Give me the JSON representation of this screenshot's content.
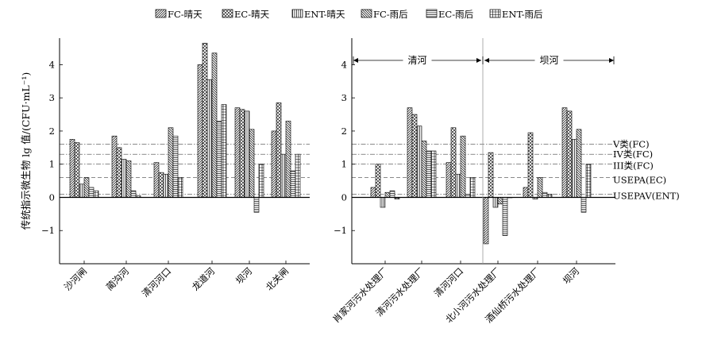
{
  "chart_data": {
    "type": "bar",
    "ylabel": "传统指示微生物 lg 值/(CFU·mL⁻¹)",
    "ylim": [
      -2,
      4.8
    ],
    "yticks": [
      -1,
      0,
      1,
      2,
      3,
      4
    ],
    "legend": {
      "placement": "top",
      "entries": [
        {
          "name": "FC-晴天",
          "pattern": "diag-right"
        },
        {
          "name": "EC-晴天",
          "pattern": "cross"
        },
        {
          "name": "ENT-晴天",
          "pattern": "vertical"
        },
        {
          "name": "FC-雨后",
          "pattern": "diag-left"
        },
        {
          "name": "EC-雨后",
          "pattern": "horizontal"
        },
        {
          "name": "ENT-雨后",
          "pattern": "grid"
        }
      ]
    },
    "thresholds": [
      {
        "label": "V类(FC)",
        "value": 1.6,
        "style": "dashdot"
      },
      {
        "label": "IV类(FC)",
        "value": 1.3,
        "style": "dashdot"
      },
      {
        "label": "III类(FC)",
        "value": 1.0,
        "style": "dashdot"
      },
      {
        "label": "USEPA(EC)",
        "value": 0.6,
        "style": "dash"
      },
      {
        "label": "USEPAV(ENT)",
        "value": 0.1,
        "style": "dashdot"
      }
    ],
    "panels": [
      {
        "categories": [
          "沙河闸",
          "蔺沟河",
          "清河河口",
          "龙道河",
          "坝河",
          "北关闸"
        ],
        "series": [
          {
            "name": "FC-晴天",
            "values": [
              1.75,
              1.85,
              1.05,
              4.0,
              2.7,
              2.0
            ]
          },
          {
            "name": "EC-晴天",
            "values": [
              1.65,
              1.5,
              0.75,
              4.65,
              2.65,
              2.85
            ]
          },
          {
            "name": "ENT-晴天",
            "values": [
              0.4,
              1.15,
              0.7,
              3.55,
              2.6,
              1.3
            ]
          },
          {
            "name": "FC-雨后",
            "values": [
              0.6,
              1.1,
              2.1,
              4.35,
              2.05,
              2.3
            ]
          },
          {
            "name": "EC-雨后",
            "values": [
              0.3,
              0.2,
              1.85,
              2.3,
              -0.45,
              0.8
            ]
          },
          {
            "name": "ENT-雨后",
            "values": [
              0.2,
              0.05,
              0.6,
              2.8,
              1.0,
              1.3
            ]
          }
        ]
      },
      {
        "categories": [
          "肖家河污水处理厂",
          "清河污水处理厂",
          "清河河口",
          "北小河污水处理厂",
          "酒仙桥污水处理厂",
          "坝河"
        ],
        "regions": [
          {
            "label": "清河",
            "from": 0,
            "to": 3
          },
          {
            "label": "坝河",
            "from": 3,
            "to": 6
          }
        ],
        "series": [
          {
            "name": "FC-晴天",
            "values": [
              0.3,
              2.7,
              1.05,
              -1.4,
              0.3,
              2.7
            ]
          },
          {
            "name": "EC-晴天",
            "values": [
              1.0,
              2.5,
              2.1,
              1.35,
              1.95,
              2.6
            ]
          },
          {
            "name": "ENT-晴天",
            "values": [
              -0.3,
              2.15,
              0.7,
              -0.3,
              -0.05,
              1.75
            ]
          },
          {
            "name": "FC-雨后",
            "values": [
              0.15,
              1.7,
              1.85,
              -0.2,
              0.6,
              2.05
            ]
          },
          {
            "name": "EC-雨后",
            "values": [
              0.2,
              1.4,
              0.1,
              -1.15,
              0.15,
              -0.45
            ]
          },
          {
            "name": "ENT-雨后",
            "values": [
              -0.05,
              1.4,
              0.6,
              0.0,
              0.1,
              1.0
            ]
          }
        ]
      }
    ]
  }
}
